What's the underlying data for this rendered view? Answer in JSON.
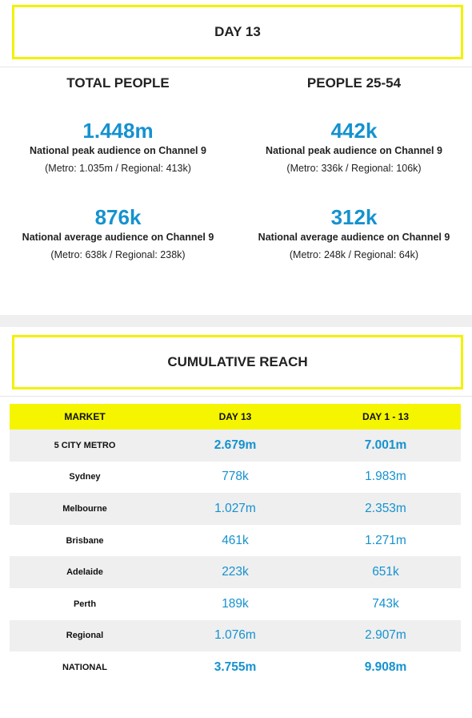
{
  "day_banner": "DAY 13",
  "left": {
    "heading": "TOTAL PEOPLE",
    "peak_value": "1.448m",
    "peak_desc": "National peak audience on Channel 9",
    "peak_breakdown": "(Metro: 1.035m / Regional: 413k)",
    "avg_value": "876k",
    "avg_desc": "National average audience on Channel 9",
    "avg_breakdown": "(Metro: 638k / Regional: 238k)"
  },
  "right": {
    "heading": "PEOPLE 25-54",
    "peak_value": "442k",
    "peak_desc": "National peak audience on Channel 9",
    "peak_breakdown": "(Metro: 336k / Regional: 106k)",
    "avg_value": "312k",
    "avg_desc": "National average audience on Channel 9",
    "avg_breakdown": "(Metro: 248k / Regional: 64k)"
  },
  "reach_banner": "CUMULATIVE REACH",
  "table": {
    "headers": [
      "MARKET",
      "DAY 13",
      "DAY 1 - 13"
    ],
    "rows": [
      {
        "market": "5 CITY METRO",
        "day": "2.679m",
        "cumulative": "7.001m"
      },
      {
        "market": "Sydney",
        "day": "778k",
        "cumulative": "1.983m"
      },
      {
        "market": "Melbourne",
        "day": "1.027m",
        "cumulative": "2.353m"
      },
      {
        "market": "Brisbane",
        "day": "461k",
        "cumulative": "1.271m"
      },
      {
        "market": "Adelaide",
        "day": "223k",
        "cumulative": "651k"
      },
      {
        "market": "Perth",
        "day": "189k",
        "cumulative": "743k"
      },
      {
        "market": "Regional",
        "day": "1.076m",
        "cumulative": "2.907m"
      },
      {
        "market": "NATIONAL",
        "day": "3.755m",
        "cumulative": "9.908m"
      }
    ]
  },
  "colors": {
    "accent_yellow": "#f2f200",
    "value_blue": "#1592cf",
    "band_grey": "#efefef"
  }
}
